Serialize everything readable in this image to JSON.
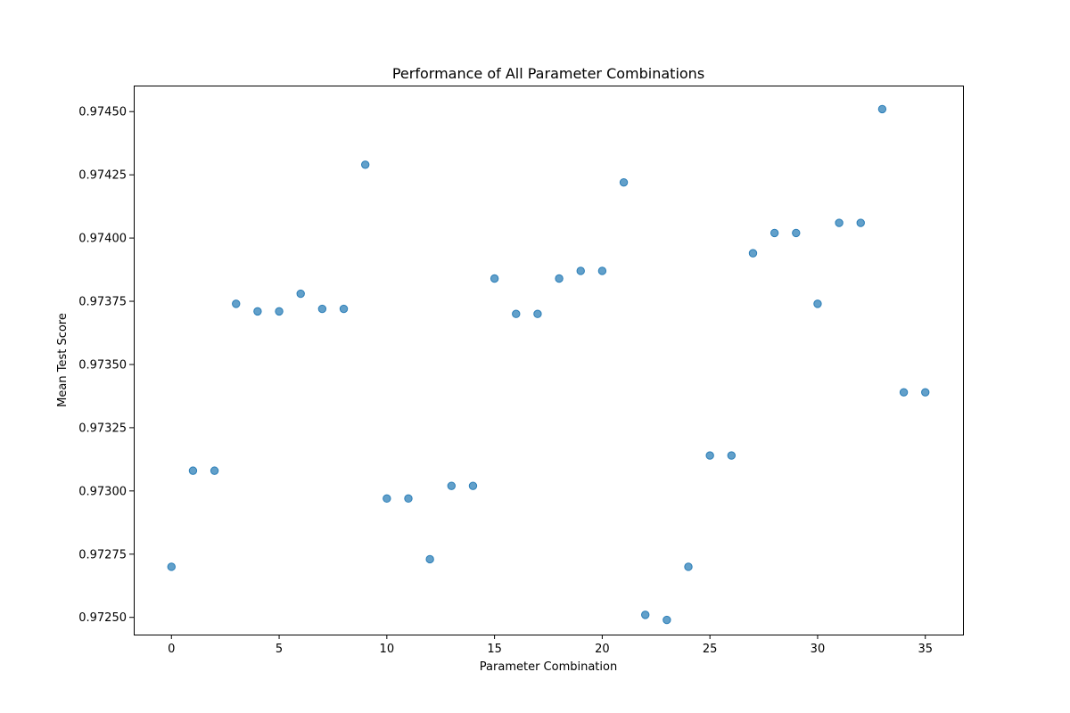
{
  "chart_data": {
    "type": "scatter",
    "title": "Performance of All Parameter Combinations",
    "xlabel": "Parameter Combination",
    "ylabel": "Mean Test Score",
    "xlim": [
      -1.75,
      36.75
    ],
    "ylim": [
      0.972432,
      0.974603
    ],
    "xticks": [
      0,
      5,
      10,
      15,
      20,
      25,
      30,
      35
    ],
    "yticks": [
      0.9725,
      0.97275,
      0.973,
      0.97325,
      0.9735,
      0.97375,
      0.974,
      0.97425,
      0.9745
    ],
    "ytick_labels": [
      "0.97250",
      "0.97275",
      "0.97300",
      "0.97325",
      "0.97350",
      "0.97375",
      "0.97400",
      "0.97425",
      "0.97450"
    ],
    "grid": false,
    "color": "#1f77b4",
    "x": [
      0,
      1,
      2,
      3,
      4,
      5,
      6,
      7,
      8,
      9,
      10,
      11,
      12,
      13,
      14,
      15,
      16,
      17,
      18,
      19,
      20,
      21,
      22,
      23,
      24,
      25,
      26,
      27,
      28,
      29,
      30,
      31,
      32,
      33,
      34,
      35
    ],
    "y": [
      0.9727,
      0.97308,
      0.97308,
      0.97374,
      0.97371,
      0.97371,
      0.97378,
      0.97372,
      0.97372,
      0.97429,
      0.97297,
      0.97297,
      0.97273,
      0.97302,
      0.97302,
      0.97384,
      0.9737,
      0.9737,
      0.97384,
      0.97387,
      0.97387,
      0.97422,
      0.97251,
      0.97249,
      0.9727,
      0.97314,
      0.97314,
      0.97394,
      0.97402,
      0.97402,
      0.97374,
      0.97406,
      0.97406,
      0.97451,
      0.97339,
      0.97339
    ]
  }
}
